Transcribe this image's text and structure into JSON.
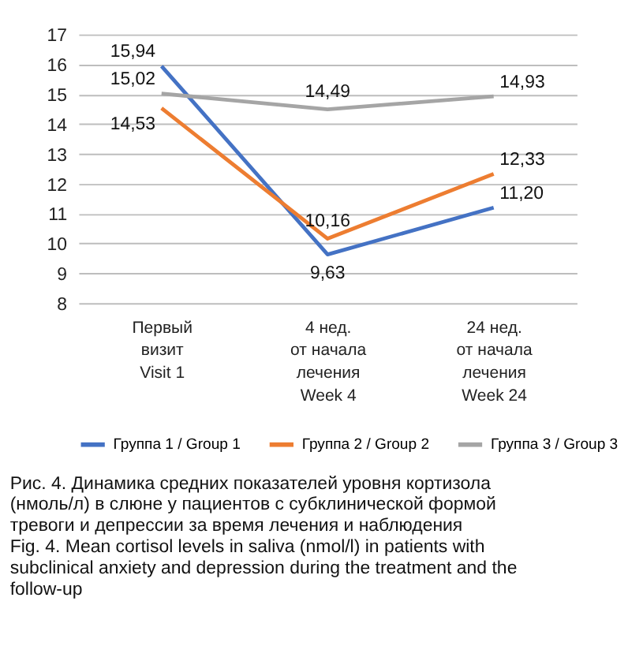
{
  "chart_data": {
    "type": "line",
    "categories": [
      "Первый\nвизит\nVisit 1",
      "4 нед.\nот начала\nлечения\nWeek 4",
      "24 нед.\nот начала\nлечения\nWeek 24"
    ],
    "series": [
      {
        "name": "Группа 1 / Group 1",
        "color": "#4472c4",
        "values": [
          15.94,
          9.63,
          11.2
        ],
        "value_labels": [
          "15,94",
          "9,63",
          "11,20"
        ]
      },
      {
        "name": "Группа 2 / Group 2",
        "color": "#ed7d31",
        "values": [
          14.53,
          10.16,
          12.33
        ],
        "value_labels": [
          "14,53",
          "10,16",
          "12,33"
        ]
      },
      {
        "name": "Группа 3 / Group 3",
        "color": "#a5a5a5",
        "values": [
          15.02,
          14.49,
          14.93
        ],
        "value_labels": [
          "15,02",
          "14,49",
          "14,93"
        ]
      }
    ],
    "ylim": [
      8,
      17
    ],
    "yticks": [
      8,
      9,
      10,
      11,
      12,
      13,
      14,
      15,
      16,
      17
    ],
    "grid": "y",
    "legend": "bottom",
    "marker": "none",
    "line_style": "solid",
    "annotations": [
      "Рис. 4. Динамика средних показателей уровня кортизола (нмоль/л) в слюне у пациентов с субклинической формой тревоги и депрессии за время лечения и наблюдения",
      "Fig. 4. Mean cortisol levels in saliva (nmol/l) in patients with subclinical anxiety and depression during the treatment and the follow-up"
    ]
  }
}
